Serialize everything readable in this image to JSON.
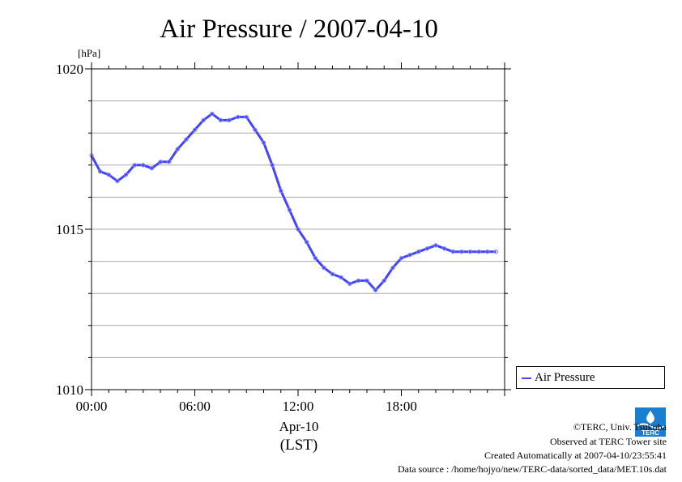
{
  "chart_data": {
    "type": "line",
    "title": "Air Pressure / 2007-04-10",
    "ylabel": "[hPa]",
    "xlabel": "Apr-10",
    "xlabel_sub": "(LST)",
    "ylim": [
      1010,
      1020
    ],
    "xlim": [
      0,
      24
    ],
    "yticks": [
      1010,
      1015,
      1020
    ],
    "ytick_labels": [
      "1010",
      "1015",
      "1020"
    ],
    "xticks": [
      0,
      6,
      12,
      18
    ],
    "xtick_labels": [
      "00:00",
      "06:00",
      "12:00",
      "18:00"
    ],
    "grid": true,
    "legend": "right-bottom",
    "series": [
      {
        "name": "Air Pressure",
        "color": "#4444ff",
        "x": [
          0,
          0.5,
          1,
          1.5,
          2,
          2.5,
          3,
          3.5,
          4,
          4.5,
          5,
          5.5,
          6,
          6.5,
          7,
          7.5,
          8,
          8.5,
          9,
          9.5,
          10,
          10.5,
          11,
          11.5,
          12,
          12.5,
          13,
          13.5,
          14,
          14.5,
          15,
          15.5,
          16,
          16.5,
          17,
          17.5,
          18,
          18.5,
          19,
          19.5,
          20,
          20.5,
          21,
          21.5,
          22,
          22.5,
          23,
          23.5
        ],
        "y": [
          1017.3,
          1016.8,
          1016.7,
          1016.5,
          1016.7,
          1017.0,
          1017.0,
          1016.9,
          1017.1,
          1017.1,
          1017.5,
          1017.8,
          1018.1,
          1018.4,
          1018.6,
          1018.4,
          1018.4,
          1018.5,
          1018.5,
          1018.1,
          1017.7,
          1017.0,
          1016.2,
          1015.6,
          1015.0,
          1014.6,
          1014.1,
          1013.8,
          1013.6,
          1013.5,
          1013.3,
          1013.4,
          1013.4,
          1013.1,
          1013.4,
          1013.8,
          1014.1,
          1014.2,
          1014.3,
          1014.4,
          1014.5,
          1014.4,
          1014.3,
          1014.3,
          1014.3,
          1014.3,
          1014.3,
          1014.3
        ]
      }
    ]
  },
  "legend": {
    "label": "Air Pressure"
  },
  "footer": {
    "copyright": "©TERC, Univ. Tsukuba",
    "observed": "Observed at TERC Tower site",
    "created": "Created Automatically at 2007-04-10/23:55:41",
    "source": "Data source : /home/hojyo/new/TERC-data/sorted_data/MET.10s.dat"
  },
  "logo": {
    "text": "TERC",
    "color": "#1a7fd1"
  }
}
